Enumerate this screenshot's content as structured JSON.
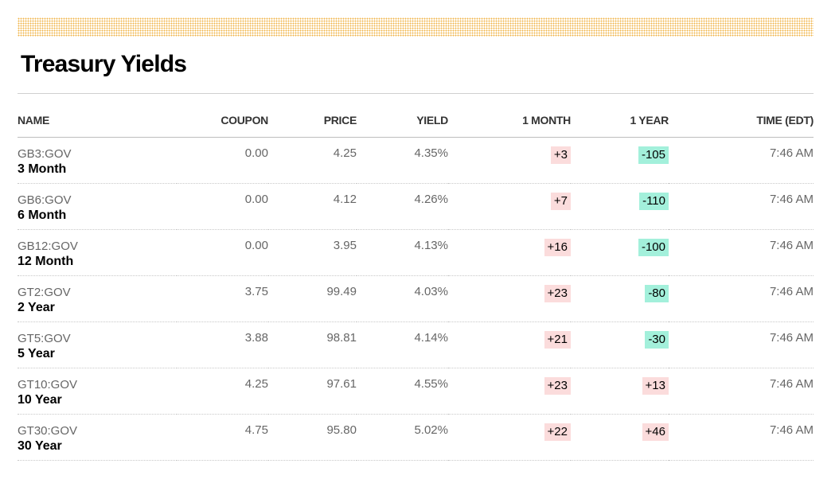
{
  "title": "Treasury Yields",
  "colors": {
    "positive_bg": "#fbdcdc",
    "negative_bg": "#a3f0db",
    "pattern": "#f0b44a"
  },
  "columns": {
    "name": "NAME",
    "coupon": "COUPON",
    "price": "PRICE",
    "yield": "YIELD",
    "month": "1 MONTH",
    "year": "1 YEAR",
    "time": "TIME (EDT)"
  },
  "rows": [
    {
      "symbol": "GB3:GOV",
      "name": "3 Month",
      "coupon": "0.00",
      "price": "4.25",
      "yield": "4.35%",
      "month": "+3",
      "year": "-105",
      "time": "7:46 AM"
    },
    {
      "symbol": "GB6:GOV",
      "name": "6 Month",
      "coupon": "0.00",
      "price": "4.12",
      "yield": "4.26%",
      "month": "+7",
      "year": "-110",
      "time": "7:46 AM"
    },
    {
      "symbol": "GB12:GOV",
      "name": "12 Month",
      "coupon": "0.00",
      "price": "3.95",
      "yield": "4.13%",
      "month": "+16",
      "year": "-100",
      "time": "7:46 AM"
    },
    {
      "symbol": "GT2:GOV",
      "name": "2 Year",
      "coupon": "3.75",
      "price": "99.49",
      "yield": "4.03%",
      "month": "+23",
      "year": "-80",
      "time": "7:46 AM"
    },
    {
      "symbol": "GT5:GOV",
      "name": "5 Year",
      "coupon": "3.88",
      "price": "98.81",
      "yield": "4.14%",
      "month": "+21",
      "year": "-30",
      "time": "7:46 AM"
    },
    {
      "symbol": "GT10:GOV",
      "name": "10 Year",
      "coupon": "4.25",
      "price": "97.61",
      "yield": "4.55%",
      "month": "+23",
      "year": "+13",
      "time": "7:46 AM"
    },
    {
      "symbol": "GT30:GOV",
      "name": "30 Year",
      "coupon": "4.75",
      "price": "95.80",
      "yield": "5.02%",
      "month": "+22",
      "year": "+46",
      "time": "7:46 AM"
    }
  ]
}
